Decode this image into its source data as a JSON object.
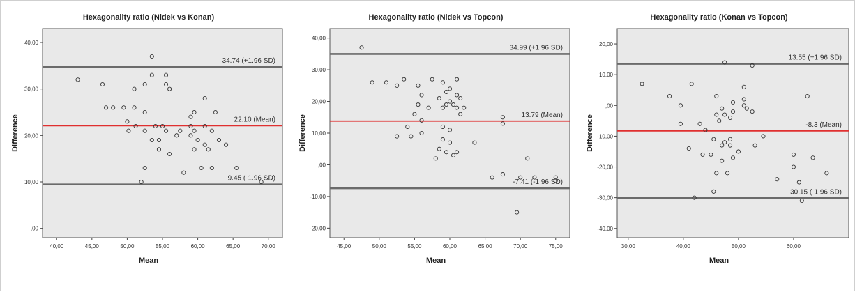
{
  "chart_data": [
    {
      "type": "scatter",
      "title": "Hexagonality ratio (Nidek vs Konan)",
      "xlabel": "Mean",
      "ylabel": "Difference",
      "xlim": [
        38,
        72
      ],
      "ylim": [
        -2,
        43
      ],
      "x_ticks": [
        "40,00",
        "45,00",
        "50,00",
        "55,00",
        "60,00",
        "65,00",
        "70,00"
      ],
      "x_tick_values": [
        40,
        45,
        50,
        55,
        60,
        65,
        70
      ],
      "y_ticks": [
        ",00",
        "10,00",
        "20,00",
        "30,00",
        "40,00"
      ],
      "y_tick_values": [
        0,
        10,
        20,
        30,
        40
      ],
      "reference_lines": [
        {
          "value": 34.74,
          "label": "34.74 (+1.96 SD)",
          "color": "#6b6b6b"
        },
        {
          "value": 22.1,
          "label": "22.10 (Mean)",
          "color": "#e03030"
        },
        {
          "value": 9.45,
          "label": "9.45 (-1.96 SD)",
          "color": "#6b6b6b"
        }
      ],
      "grid": false,
      "points": [
        [
          43,
          32
        ],
        [
          46.5,
          31
        ],
        [
          47,
          26
        ],
        [
          48,
          26
        ],
        [
          49.5,
          26
        ],
        [
          50,
          23
        ],
        [
          50.2,
          21
        ],
        [
          51,
          30
        ],
        [
          51,
          26
        ],
        [
          51.2,
          22
        ],
        [
          52.5,
          31
        ],
        [
          52.5,
          25
        ],
        [
          52.5,
          21
        ],
        [
          52.5,
          13
        ],
        [
          52,
          10
        ],
        [
          53.5,
          37
        ],
        [
          53.5,
          33
        ],
        [
          53.5,
          19
        ],
        [
          54,
          22
        ],
        [
          54.5,
          19
        ],
        [
          54.5,
          17
        ],
        [
          55,
          22
        ],
        [
          55.5,
          33
        ],
        [
          55.5,
          31
        ],
        [
          55.5,
          21
        ],
        [
          56,
          30
        ],
        [
          56,
          16
        ],
        [
          57,
          20
        ],
        [
          57.5,
          21
        ],
        [
          58,
          12
        ],
        [
          59,
          24
        ],
        [
          59,
          22
        ],
        [
          59,
          20
        ],
        [
          59.5,
          25
        ],
        [
          59.5,
          21
        ],
        [
          59.5,
          17
        ],
        [
          60,
          19
        ],
        [
          60.5,
          13
        ],
        [
          61,
          28
        ],
        [
          61,
          22
        ],
        [
          61,
          18
        ],
        [
          61.5,
          17
        ],
        [
          62,
          21
        ],
        [
          62,
          13
        ],
        [
          62.5,
          25
        ],
        [
          63,
          19
        ],
        [
          64,
          18
        ],
        [
          65.5,
          13
        ],
        [
          69,
          10
        ]
      ]
    },
    {
      "type": "scatter",
      "title": "Hexagonality ratio (Nidek vs Topcon)",
      "xlabel": "Mean",
      "ylabel": "Difference",
      "xlim": [
        43,
        77
      ],
      "ylim": [
        -23,
        43
      ],
      "x_ticks": [
        "45,00",
        "50,00",
        "55,00",
        "60,00",
        "65,00",
        "70,00",
        "75,00"
      ],
      "x_tick_values": [
        45,
        50,
        55,
        60,
        65,
        70,
        75
      ],
      "y_ticks": [
        "-20,00",
        "-10,00",
        ",00",
        "10,00",
        "20,00",
        "30,00",
        "40,00"
      ],
      "y_tick_values": [
        -20,
        -10,
        0,
        10,
        20,
        30,
        40
      ],
      "reference_lines": [
        {
          "value": 34.99,
          "label": "34.99 (+1.96 SD)",
          "color": "#6b6b6b"
        },
        {
          "value": 13.79,
          "label": "13.79 (Mean)",
          "color": "#e03030"
        },
        {
          "value": -7.41,
          "label": "-7.41 (-1.96 SD)",
          "color": "#6b6b6b"
        }
      ],
      "grid": false,
      "points": [
        [
          47.5,
          37
        ],
        [
          49,
          26
        ],
        [
          51,
          26
        ],
        [
          52.5,
          25
        ],
        [
          52.5,
          9
        ],
        [
          53.5,
          27
        ],
        [
          54,
          12
        ],
        [
          54.5,
          9
        ],
        [
          55,
          16
        ],
        [
          55.5,
          25
        ],
        [
          55.5,
          19
        ],
        [
          56,
          22
        ],
        [
          56,
          14
        ],
        [
          56,
          10
        ],
        [
          57,
          18
        ],
        [
          57.5,
          27
        ],
        [
          58,
          2
        ],
        [
          58.5,
          21
        ],
        [
          58.5,
          5
        ],
        [
          59,
          26
        ],
        [
          59,
          18
        ],
        [
          59,
          12
        ],
        [
          59,
          8
        ],
        [
          59.5,
          23
        ],
        [
          59.5,
          19
        ],
        [
          59.5,
          4
        ],
        [
          60,
          24
        ],
        [
          60,
          20
        ],
        [
          60,
          11
        ],
        [
          60,
          7
        ],
        [
          60.5,
          19
        ],
        [
          60.5,
          3
        ],
        [
          61,
          27
        ],
        [
          61,
          22
        ],
        [
          61,
          18
        ],
        [
          61,
          4
        ],
        [
          61.5,
          21
        ],
        [
          61.5,
          16
        ],
        [
          62,
          18
        ],
        [
          63.5,
          7
        ],
        [
          66,
          -4
        ],
        [
          67.5,
          15
        ],
        [
          67.5,
          13
        ],
        [
          67.5,
          -3
        ],
        [
          69.5,
          -15
        ],
        [
          70,
          -4
        ],
        [
          71,
          2
        ],
        [
          72,
          -4
        ],
        [
          75,
          -4
        ],
        [
          75,
          -5
        ]
      ]
    },
    {
      "type": "scatter",
      "title": "Hexagonality ratio (Konan vs Topcon)",
      "xlabel": "Mean",
      "ylabel": "Difference",
      "xlim": [
        28,
        70
      ],
      "ylim": [
        -43,
        25
      ],
      "x_ticks": [
        "30,00",
        "40,00",
        "50,00",
        "60,00"
      ],
      "x_tick_values": [
        30,
        40,
        50,
        60
      ],
      "y_ticks": [
        "-40,00",
        "-30,00",
        "-20,00",
        "-10,00",
        ",00",
        "10,00",
        "20,00"
      ],
      "y_tick_values": [
        -40,
        -30,
        -20,
        -10,
        0,
        10,
        20
      ],
      "reference_lines": [
        {
          "value": 13.55,
          "label": "13.55 (+1.96 SD)",
          "color": "#6b6b6b"
        },
        {
          "value": -8.3,
          "label": "-8.3 (Mean)",
          "color": "#e03030"
        },
        {
          "value": -30.15,
          "label": "-30.15 (-1.96 SD)",
          "color": "#6b6b6b"
        }
      ],
      "grid": false,
      "points": [
        [
          32.5,
          7
        ],
        [
          37.5,
          3
        ],
        [
          39.5,
          0
        ],
        [
          39.5,
          -6
        ],
        [
          41,
          -14
        ],
        [
          41.5,
          7
        ],
        [
          42,
          -30
        ],
        [
          43,
          -6
        ],
        [
          43.5,
          -16
        ],
        [
          44,
          -8
        ],
        [
          45,
          -16
        ],
        [
          45.5,
          -28
        ],
        [
          45.5,
          -11
        ],
        [
          46,
          3
        ],
        [
          46,
          -3
        ],
        [
          46,
          -22
        ],
        [
          46.5,
          -5
        ],
        [
          47,
          -1
        ],
        [
          47,
          -13
        ],
        [
          47,
          -18
        ],
        [
          47.5,
          14
        ],
        [
          47.5,
          -3
        ],
        [
          47.5,
          -12
        ],
        [
          48,
          -22
        ],
        [
          48.5,
          -4
        ],
        [
          48.5,
          -11
        ],
        [
          48.5,
          -13
        ],
        [
          49,
          1
        ],
        [
          49,
          -2
        ],
        [
          49,
          -17
        ],
        [
          50,
          -15
        ],
        [
          51,
          6
        ],
        [
          51,
          2
        ],
        [
          51,
          0
        ],
        [
          51.5,
          -1
        ],
        [
          52.5,
          13
        ],
        [
          52.5,
          -2
        ],
        [
          53,
          -13
        ],
        [
          54.5,
          -10
        ],
        [
          57,
          -24
        ],
        [
          60,
          -16
        ],
        [
          60,
          -20
        ],
        [
          61,
          -25
        ],
        [
          61.5,
          -31
        ],
        [
          62.5,
          3
        ],
        [
          63.5,
          -17
        ],
        [
          66,
          -22
        ]
      ]
    }
  ]
}
